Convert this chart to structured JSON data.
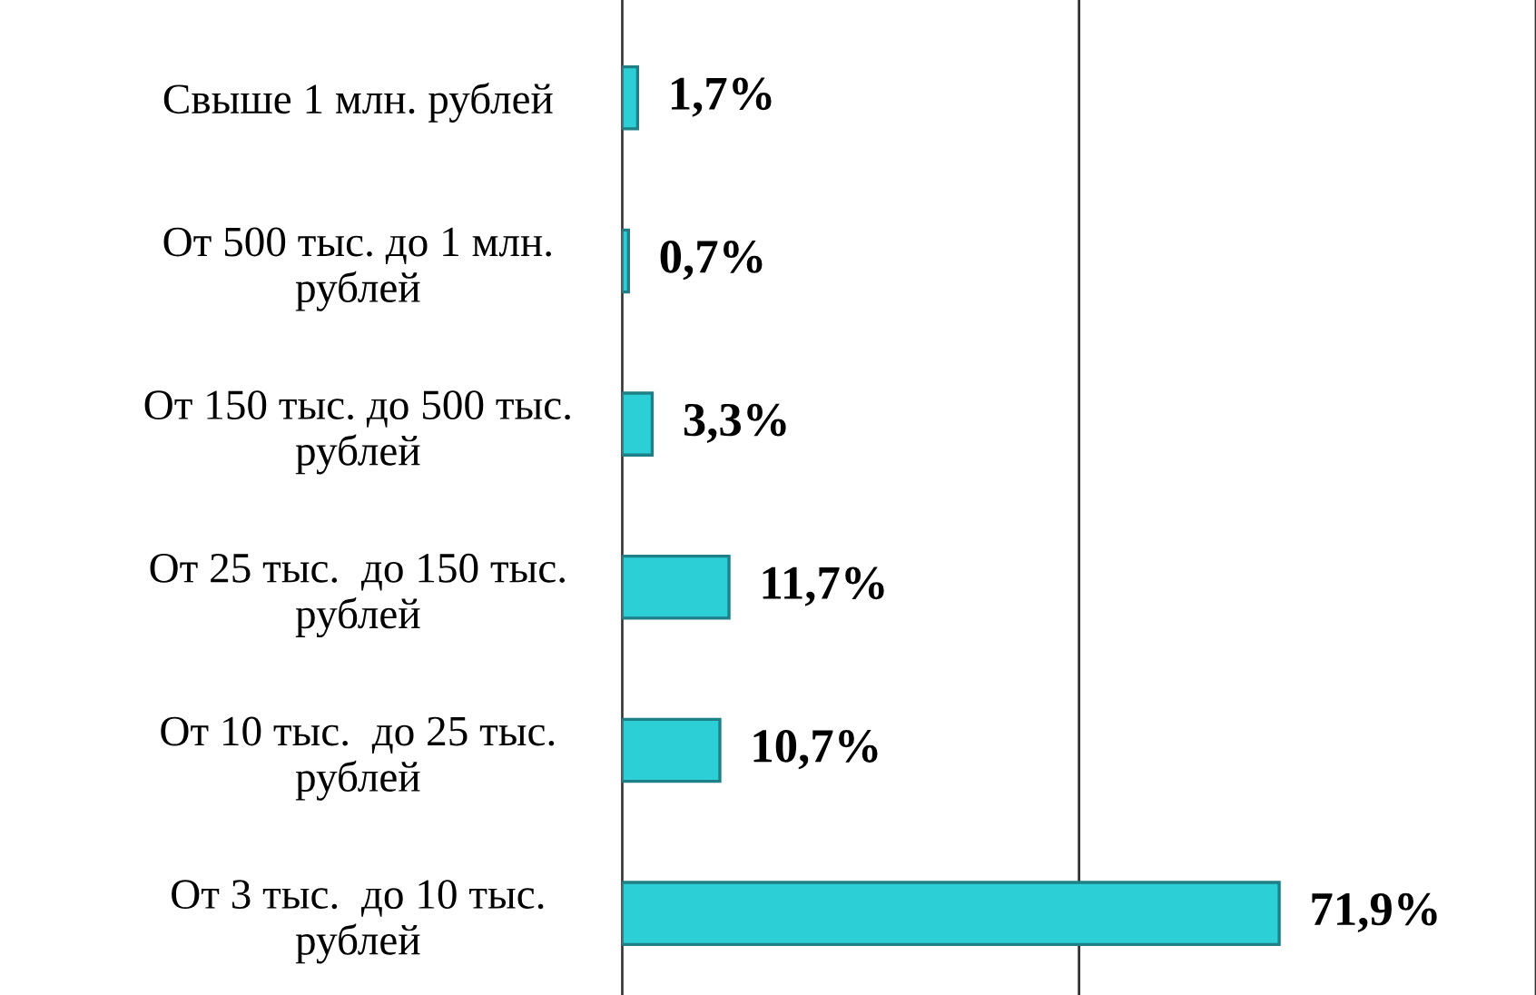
{
  "chart_data": {
    "type": "bar",
    "orientation": "horizontal",
    "categories": [
      "Свыше 1 млн. рублей",
      "От 500 тыс. до 1 млн.\nрублей",
      "От 150 тыс. до 500 тыс.\nрублей",
      "От 25 тыс.  до 150 тыс.\nрублей",
      "От 10 тыс.  до 25 тыс.\nрублей",
      "От 3 тыс.  до 10 тыс.\nрублей"
    ],
    "values": [
      1.7,
      0.7,
      3.3,
      11.7,
      10.7,
      71.9
    ],
    "value_labels": [
      "1,7%",
      "0,7%",
      "3,3%",
      "11,7%",
      "10,7%",
      "71,9%"
    ],
    "color": "#2ccfd6",
    "xlim": [
      0,
      100
    ],
    "xticks": [
      {
        "value": 0,
        "label": null
      },
      {
        "value": 50,
        "label": null
      },
      {
        "value": 100,
        "label": null
      }
    ],
    "tick_labels": "y",
    "grid": "x"
  }
}
